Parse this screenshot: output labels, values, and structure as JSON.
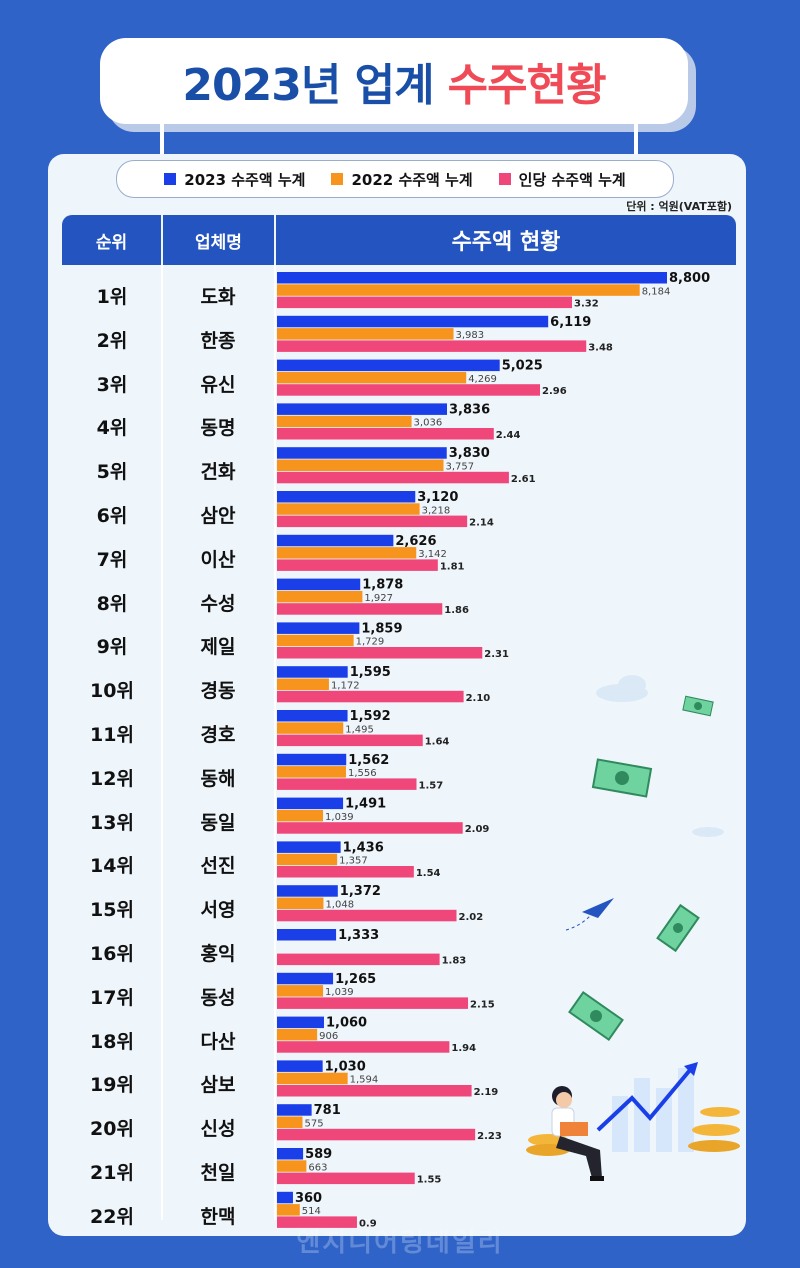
{
  "title": {
    "part1": "2023년 업계",
    "part2": "수주현황"
  },
  "legend": {
    "items": [
      {
        "label": "2023 수주액 누계",
        "color": "#1a3ee8"
      },
      {
        "label": "2022 수주액 누계",
        "color": "#f7941d"
      },
      {
        "label": "인당 수주액 누계",
        "color": "#f0477a"
      }
    ]
  },
  "unit_note": "단위 : 억원(VAT포함)",
  "table_header": {
    "rank": "순위",
    "company": "업체명",
    "values": "수주액 현황"
  },
  "watermark": "엔지니어링데일리",
  "chart_data": {
    "type": "bar",
    "orientation": "horizontal",
    "categories": [
      "도화",
      "한종",
      "유신",
      "동명",
      "건화",
      "삼안",
      "이산",
      "수성",
      "제일",
      "경동",
      "경호",
      "동해",
      "동일",
      "선진",
      "서영",
      "홍익",
      "동성",
      "다산",
      "삼보",
      "신성",
      "천일",
      "한맥"
    ],
    "ranks": [
      "1위",
      "2위",
      "3위",
      "4위",
      "5위",
      "6위",
      "7위",
      "8위",
      "9위",
      "10위",
      "11위",
      "12위",
      "13위",
      "14위",
      "15위",
      "16위",
      "17위",
      "18위",
      "19위",
      "20위",
      "21위",
      "22위"
    ],
    "series": [
      {
        "name": "2023 수주액 누계",
        "color": "#1a3ee8",
        "values": [
          8800,
          6119,
          5025,
          3836,
          3830,
          3120,
          2626,
          1878,
          1859,
          1595,
          1592,
          1562,
          1491,
          1436,
          1372,
          1333,
          1265,
          1060,
          1030,
          781,
          589,
          360
        ],
        "labels": [
          "8,800",
          "6,119",
          "5,025",
          "3,836",
          "3,830",
          "3,120",
          "2,626",
          "1,878",
          "1,859",
          "1,595",
          "1,592",
          "1,562",
          "1,491",
          "1,436",
          "1,372",
          "1,333",
          "1,265",
          "1,060",
          "1,030",
          "781",
          "589",
          "360"
        ]
      },
      {
        "name": "2022 수주액 누계",
        "color": "#f7941d",
        "values": [
          8184,
          3983,
          4269,
          3036,
          3757,
          3218,
          3142,
          1927,
          1729,
          1172,
          1495,
          1556,
          1039,
          1357,
          1048,
          null,
          1039,
          906,
          1594,
          575,
          663,
          514
        ],
        "labels": [
          "8,184",
          "3,983",
          "4,269",
          "3,036",
          "3,757",
          "3,218",
          "3,142",
          "1,927",
          "1,729",
          "1,172",
          "1,495",
          "1,556",
          "1,039",
          "1,357",
          "1,048",
          "",
          "1,039",
          "906",
          "1,594",
          "575",
          "663",
          "514"
        ]
      },
      {
        "name": "인당 수주액 누계",
        "color": "#f0477a",
        "values": [
          3.32,
          3.48,
          2.96,
          2.44,
          2.61,
          2.14,
          1.81,
          1.86,
          2.31,
          2.1,
          1.64,
          1.57,
          2.09,
          1.54,
          2.02,
          1.83,
          2.15,
          1.94,
          2.19,
          2.23,
          1.55,
          0.9
        ],
        "labels": [
          "3.32",
          "3.48",
          "2.96",
          "2.44",
          "2.61",
          "2.14",
          "1.81",
          "1.86",
          "2.31",
          "2.10",
          "1.64",
          "1.57",
          "2.09",
          "1.54",
          "2.02",
          "1.83",
          "2.15",
          "1.94",
          "2.19",
          "2.23",
          "1.55",
          "0.9"
        ]
      }
    ]
  }
}
